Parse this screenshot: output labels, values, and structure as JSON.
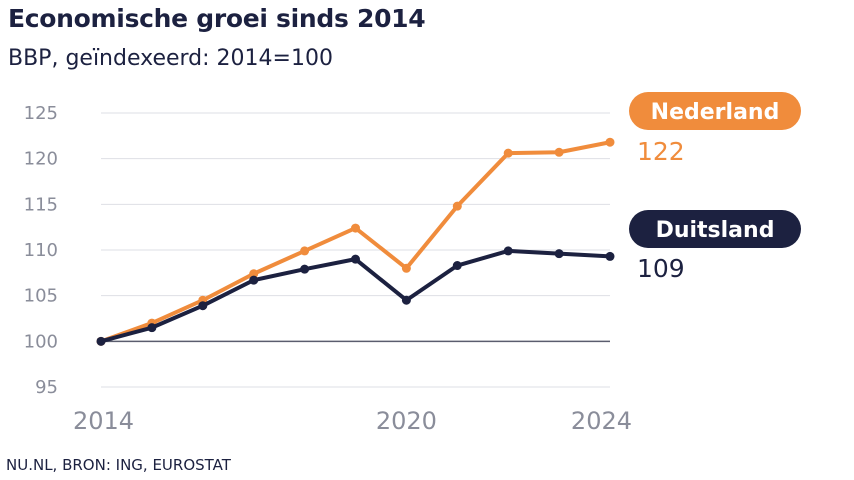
{
  "header": {
    "title": "Economische groei sinds 2014",
    "subtitle": "BBP, geïndexeerd: 2014=100"
  },
  "footer": {
    "source": "NU.NL, BRON: ING, EUROSTAT"
  },
  "colors": {
    "nederland": "#f08c3c",
    "duitsland": "#1c2140",
    "grid": "#dedfe4",
    "baseline": "#5a5d6e",
    "tick": "#8a8d9a"
  },
  "chart_data": {
    "type": "line",
    "title": "Economische groei sinds 2014",
    "subtitle": "BBP, geïndexeerd: 2014=100",
    "xlabel": "",
    "ylabel": "",
    "x": [
      2014,
      2015,
      2016,
      2017,
      2018,
      2019,
      2020,
      2021,
      2022,
      2023,
      2024
    ],
    "x_tick_labels": [
      "2014",
      "2020",
      "2024"
    ],
    "y_ticks": [
      95,
      100,
      105,
      110,
      115,
      120,
      125
    ],
    "ylim": [
      95,
      125
    ],
    "xlim": [
      2014,
      2024
    ],
    "grid": true,
    "series": [
      {
        "name": "Nederland",
        "color": "#f08c3c",
        "end_label": "122",
        "values": [
          100,
          102,
          104.5,
          107.4,
          109.9,
          112.4,
          108.0,
          114.8,
          120.6,
          120.7,
          121.8
        ]
      },
      {
        "name": "Duitsland",
        "color": "#1c2140",
        "end_label": "109",
        "values": [
          100,
          101.5,
          103.9,
          106.7,
          107.9,
          109.0,
          104.5,
          108.3,
          109.9,
          109.6,
          109.3
        ]
      }
    ]
  }
}
